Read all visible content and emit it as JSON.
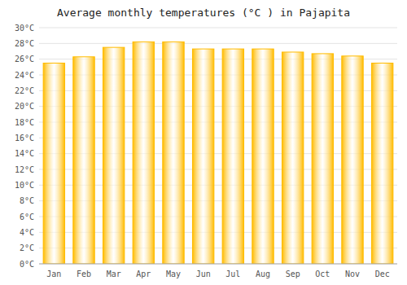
{
  "chart_data": {
    "type": "bar",
    "title": "Average monthly temperatures (°C ) in Pajapita",
    "categories": [
      "Jan",
      "Feb",
      "Mar",
      "Apr",
      "May",
      "Jun",
      "Jul",
      "Aug",
      "Sep",
      "Oct",
      "Nov",
      "Dec"
    ],
    "values": [
      25.5,
      26.3,
      27.5,
      28.2,
      28.2,
      27.3,
      27.3,
      27.3,
      26.9,
      26.7,
      26.4,
      25.5
    ],
    "color": "#FFBB00",
    "ylim": [
      0,
      30
    ],
    "yticks": [
      {
        "value": 0,
        "label": "0°C"
      },
      {
        "value": 2,
        "label": "2°C"
      },
      {
        "value": 4,
        "label": "4°C"
      },
      {
        "value": 6,
        "label": "6°C"
      },
      {
        "value": 8,
        "label": "8°C"
      },
      {
        "value": 10,
        "label": "10°C"
      },
      {
        "value": 12,
        "label": "12°C"
      },
      {
        "value": 14,
        "label": "14°C"
      },
      {
        "value": 16,
        "label": "16°C"
      },
      {
        "value": 18,
        "label": "18°C"
      },
      {
        "value": 20,
        "label": "20°C"
      },
      {
        "value": 22,
        "label": "22°C"
      },
      {
        "value": 24,
        "label": "24°C"
      },
      {
        "value": 26,
        "label": "26°C"
      },
      {
        "value": 28,
        "label": "28°C"
      },
      {
        "value": 30,
        "label": "30°C"
      }
    ],
    "grid": true
  }
}
